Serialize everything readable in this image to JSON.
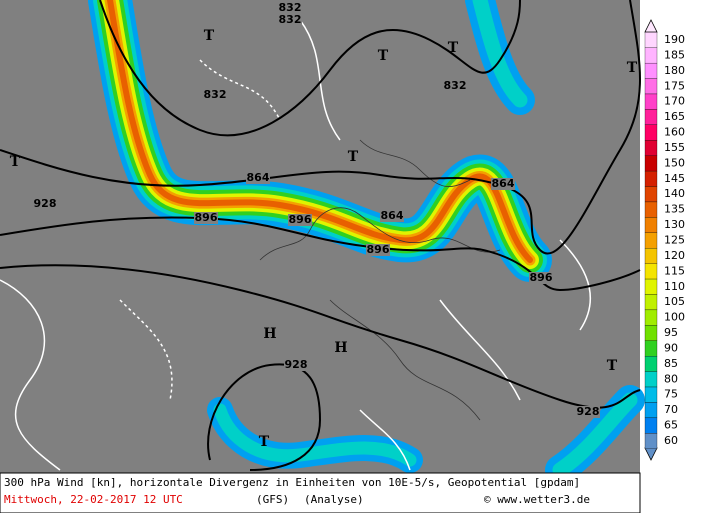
{
  "map": {
    "contour_labels": [
      "832",
      "832",
      "832",
      "832",
      "864",
      "864",
      "864",
      "896",
      "896",
      "896",
      "896",
      "928",
      "928",
      "928"
    ],
    "markers": [
      "T",
      "T",
      "T",
      "T",
      "T",
      "T",
      "H",
      "H",
      "T",
      "T"
    ]
  },
  "legend": {
    "levels": [
      190,
      185,
      180,
      175,
      170,
      165,
      160,
      155,
      150,
      145,
      140,
      135,
      130,
      125,
      120,
      115,
      110,
      105,
      100,
      95,
      90,
      85,
      80,
      75,
      70,
      65,
      60
    ],
    "colors": [
      "#ffd6ff",
      "#ffb4ff",
      "#ff90ff",
      "#ff6ee6",
      "#ff40c8",
      "#ff209a",
      "#ff0064",
      "#e00032",
      "#c80000",
      "#d42000",
      "#e04400",
      "#e86000",
      "#f08000",
      "#f4a000",
      "#f4c400",
      "#f4e400",
      "#e0f400",
      "#c0f000",
      "#a0ec00",
      "#70e000",
      "#30d020",
      "#00d070",
      "#00d0c8",
      "#00bce8",
      "#00a0f0",
      "#0080f0",
      "#6090c8"
    ]
  },
  "caption": {
    "line1": "300 hPa Wind [kn], horizontale Divergenz in Einheiten von 10E-5/s, Geopotential [gpdam]",
    "date": "Mittwoch, 22-02-2017  12 UTC",
    "model": "(GFS)",
    "run": "(Analyse)",
    "source": "© www.wetter3.de"
  }
}
